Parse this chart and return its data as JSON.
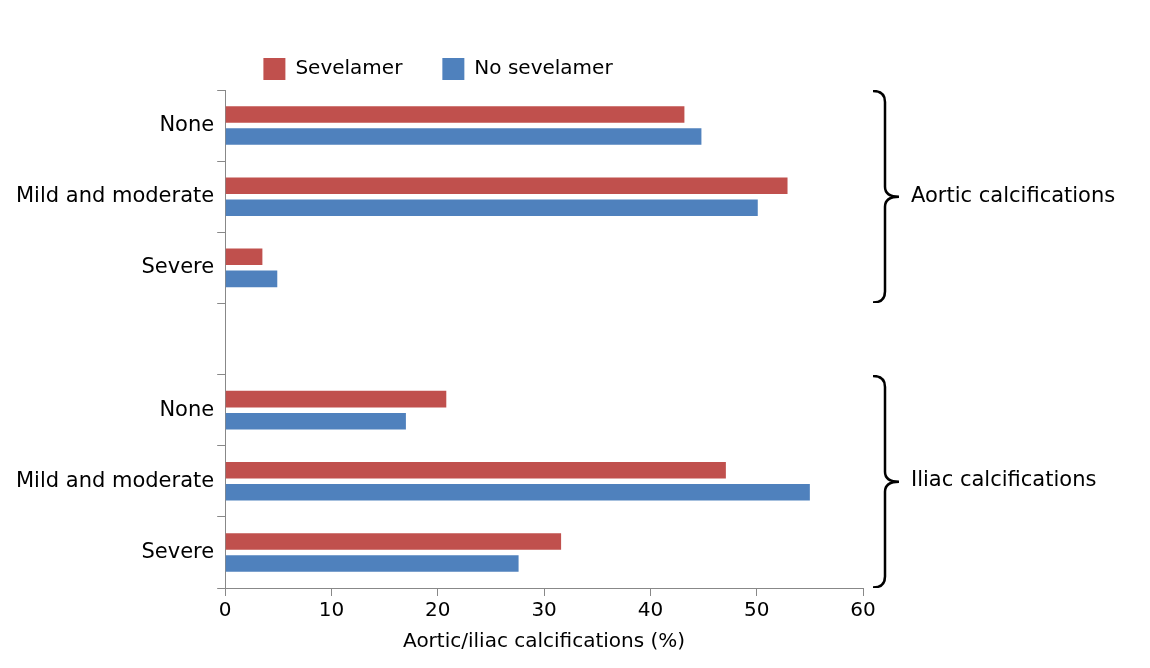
{
  "chart_data": {
    "type": "bar",
    "orientation": "horizontal",
    "xlabel": "Aortic/iliac calcifications (%)",
    "categories": [
      "None",
      "Mild and moderate",
      "Severe",
      null,
      "None",
      "Mild and moderate",
      "Severe"
    ],
    "series": [
      {
        "name": "Sevelamer",
        "color": "#c0504d",
        "values": [
          43.2,
          52.9,
          3.5,
          null,
          20.8,
          47.1,
          31.6
        ]
      },
      {
        "name": "No sevelamer",
        "color": "#4f81bd",
        "values": [
          44.8,
          50.1,
          4.9,
          null,
          17.0,
          55.0,
          27.6
        ]
      }
    ],
    "xlim": [
      0,
      60
    ],
    "xticks": [
      0,
      10,
      20,
      30,
      40,
      50,
      60
    ],
    "legend": "top",
    "annotations": [
      "Aortic calcifications",
      "Iliac calcifications"
    ]
  }
}
